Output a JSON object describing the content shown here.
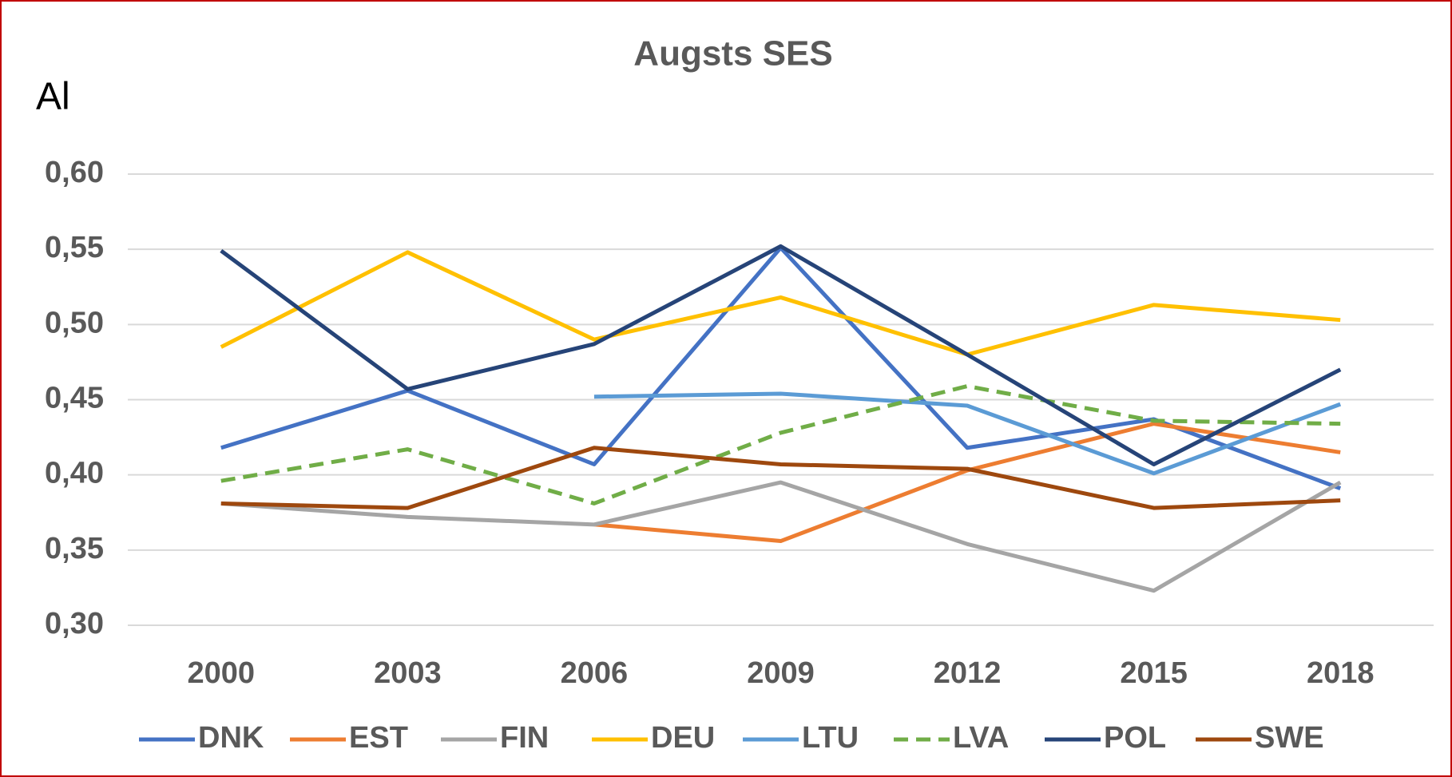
{
  "chart_data": {
    "type": "line",
    "title": "Augsts SES",
    "y_label": "Al",
    "categories": [
      "2000",
      "2003",
      "2006",
      "2009",
      "2012",
      "2015",
      "2018"
    ],
    "series": [
      {
        "name": "DNK",
        "color": "#4472c4",
        "values": [
          0.418,
          0.456,
          0.407,
          0.551,
          0.418,
          0.437,
          0.391
        ]
      },
      {
        "name": "EST",
        "color": "#ed7d31",
        "values": [
          null,
          null,
          0.367,
          0.356,
          0.403,
          0.434,
          0.415
        ]
      },
      {
        "name": "FIN",
        "color": "#a5a5a5",
        "values": [
          0.381,
          0.372,
          0.367,
          0.395,
          0.354,
          0.323,
          0.395
        ]
      },
      {
        "name": "DEU",
        "color": "#ffc000",
        "values": [
          0.485,
          0.548,
          0.49,
          0.518,
          0.48,
          0.513,
          0.503
        ]
      },
      {
        "name": "LTU",
        "color": "#5b9bd5",
        "values": [
          null,
          null,
          0.452,
          0.454,
          0.446,
          0.401,
          0.447
        ]
      },
      {
        "name": "LVA",
        "color": "#70ad47",
        "dashed": true,
        "values": [
          0.396,
          0.417,
          0.381,
          0.428,
          0.459,
          0.436,
          0.434
        ]
      },
      {
        "name": "POL",
        "color": "#264478",
        "values": [
          0.549,
          0.457,
          0.487,
          0.552,
          0.48,
          0.407,
          0.47
        ]
      },
      {
        "name": "SWE",
        "color": "#9e480e",
        "values": [
          0.381,
          0.378,
          0.418,
          0.407,
          0.404,
          0.378,
          0.383
        ]
      }
    ],
    "ylim": [
      0.3,
      0.6
    ],
    "yticks": [
      {
        "value": 0.3,
        "label": "0,30"
      },
      {
        "value": 0.35,
        "label": "0,35"
      },
      {
        "value": 0.4,
        "label": "0,40"
      },
      {
        "value": 0.45,
        "label": "0,45"
      },
      {
        "value": 0.5,
        "label": "0,50"
      },
      {
        "value": 0.55,
        "label": "0,55"
      },
      {
        "value": 0.6,
        "label": "0,60"
      }
    ],
    "grid": true,
    "legend": "bottom"
  }
}
